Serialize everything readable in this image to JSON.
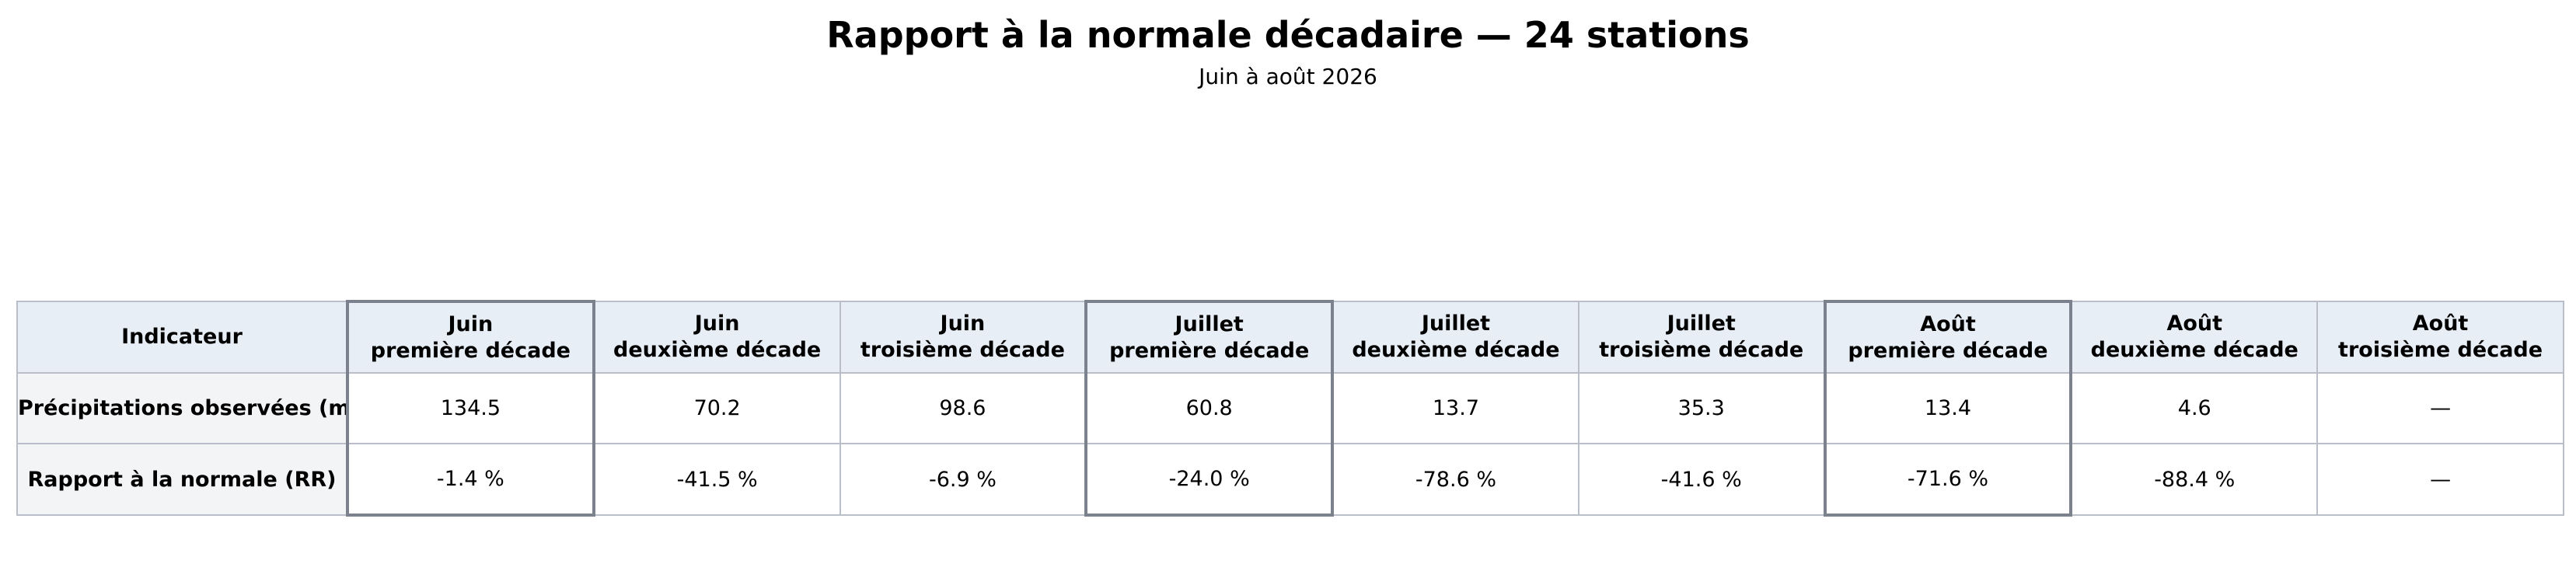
{
  "header": {
    "title": "Rapport à la normale décadaire — 24 stations",
    "subtitle": "Juin à août 2026"
  },
  "table": {
    "corner": "Indicateur",
    "columns": [
      {
        "month": "Juin",
        "decade": "première décade"
      },
      {
        "month": "Juin",
        "decade": "deuxième décade"
      },
      {
        "month": "Juin",
        "decade": "troisième décade"
      },
      {
        "month": "Juillet",
        "decade": "première décade"
      },
      {
        "month": "Juillet",
        "decade": "deuxième décade"
      },
      {
        "month": "Juillet",
        "decade": "troisième décade"
      },
      {
        "month": "Août",
        "decade": "première décade"
      },
      {
        "month": "Août",
        "decade": "deuxième décade"
      },
      {
        "month": "Août",
        "decade": "troisième décade"
      }
    ],
    "rows": [
      {
        "label": "Précipitations observées (mm)",
        "cells": [
          "134.5",
          "70.2",
          "98.6",
          "60.8",
          "13.7",
          "35.3",
          "13.4",
          "4.6",
          "—"
        ]
      },
      {
        "label": "Rapport à la normale (RR)",
        "cells": [
          "-1.4 %",
          "-41.5 %",
          "-6.9 %",
          "-24.0 %",
          "-78.6 %",
          "-41.6 %",
          "-71.6 %",
          "-88.4 %",
          "—"
        ]
      }
    ]
  }
}
